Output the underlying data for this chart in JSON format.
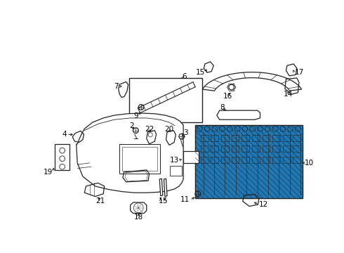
{
  "background_color": "#ffffff",
  "line_color": "#222222",
  "label_color": "#000000",
  "font_size": 7.5,
  "fig_width": 4.9,
  "fig_height": 3.6,
  "dpi": 100
}
